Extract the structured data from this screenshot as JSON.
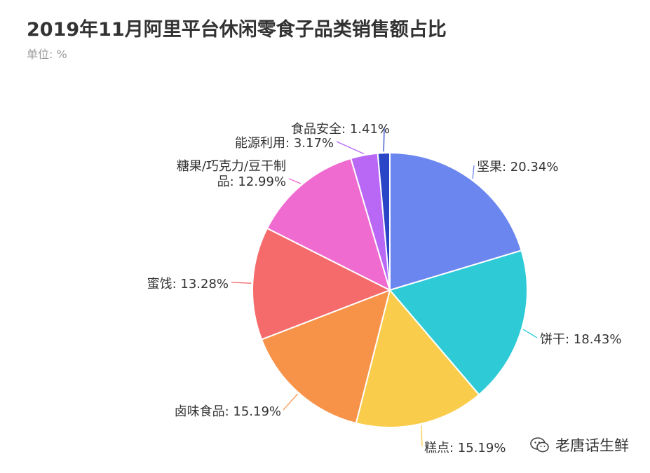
{
  "title": "2019年11月阿里平台休闲零食子品类销售额占比",
  "unit_label": "单位: %",
  "watermark": {
    "text": "老唐话生鲜",
    "icon": "wechat-icon"
  },
  "chart_data": {
    "type": "pie",
    "title": "2019年11月阿里平台休闲零食子品类销售额占比",
    "unit": "%",
    "slices": [
      {
        "name": "坚果",
        "value": 20.34,
        "label": "坚果: 20.34%",
        "color": "#6b86ee"
      },
      {
        "name": "饼干",
        "value": 18.43,
        "label": "饼干: 18.43%",
        "color": "#2ecbd7"
      },
      {
        "name": "糕点",
        "value": 15.19,
        "label": "糕点: 15.19%",
        "color": "#f9cd4b"
      },
      {
        "name": "卤味食品",
        "value": 15.19,
        "label": "卤味食品: 15.19%",
        "color": "#f79349"
      },
      {
        "name": "蜜饯",
        "value": 13.28,
        "label": "蜜饯: 13.28%",
        "color": "#f56b6b"
      },
      {
        "name": "糖果/巧克力/豆干制品",
        "value": 12.99,
        "label_lines": [
          "糖果/巧克力/豆干制",
          "品: 12.99%"
        ],
        "color": "#ef6bd0"
      },
      {
        "name": "能源利用",
        "value": 3.17,
        "label": "能源利用: 3.17%",
        "color": "#b968f5"
      },
      {
        "name": "食品安全",
        "value": 1.41,
        "label": "食品安全: 1.41%",
        "color": "#2a45c6"
      }
    ]
  }
}
